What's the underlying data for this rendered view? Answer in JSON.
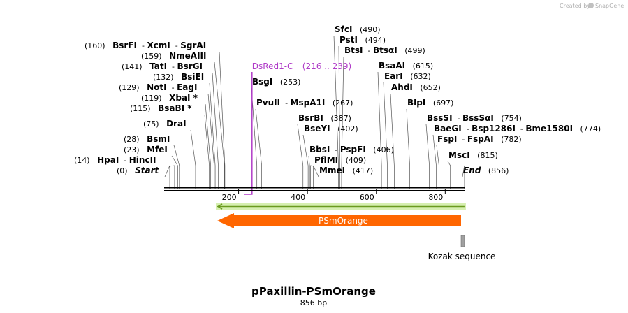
{
  "credit": {
    "text": "Created by",
    "brand": "SnapGene"
  },
  "title": "pPaxillin-PSmOrange",
  "subtitle": "856 bp",
  "sequence_length": 856,
  "ruler": {
    "ticks": [
      "200",
      "400",
      "600",
      "800"
    ]
  },
  "enzymes": [
    {
      "pos": "(160)",
      "names": [
        "BsrFI",
        "XcmI",
        "SgrAI"
      ],
      "bp": 160,
      "order": "pos-first"
    },
    {
      "pos": "(159)",
      "names": [
        "NmeAIII"
      ],
      "bp": 159,
      "order": "pos-first"
    },
    {
      "pos": "(141)",
      "names": [
        "TatI",
        "BsrGI"
      ],
      "bp": 141,
      "order": "pos-first"
    },
    {
      "pos": "(132)",
      "names": [
        "BsiEI"
      ],
      "bp": 132,
      "order": "pos-first"
    },
    {
      "pos": "(129)",
      "names": [
        "NotI",
        "EagI"
      ],
      "bp": 129,
      "order": "pos-first"
    },
    {
      "pos": "(119)",
      "names": [
        "XbaI *"
      ],
      "bp": 119,
      "order": "pos-first"
    },
    {
      "pos": "(115)",
      "names": [
        "BsaBI *"
      ],
      "bp": 115,
      "order": "pos-first"
    },
    {
      "pos": "(75)",
      "names": [
        "DraI"
      ],
      "bp": 75,
      "order": "pos-first"
    },
    {
      "pos": "(28)",
      "names": [
        "BsmI"
      ],
      "bp": 28,
      "order": "pos-first"
    },
    {
      "pos": "(23)",
      "names": [
        "MfeI"
      ],
      "bp": 23,
      "order": "pos-first"
    },
    {
      "pos": "(14)",
      "names": [
        "HpaI",
        "HincII"
      ],
      "bp": 14,
      "order": "pos-first"
    },
    {
      "pos": "(0)",
      "names": [
        "Start"
      ],
      "bp": 0,
      "order": "pos-first",
      "italic": true
    },
    {
      "pos": "(253)",
      "names": [
        "BsgI"
      ],
      "bp": 253,
      "order": "name-first"
    },
    {
      "pos": "(267)",
      "names": [
        "PvuII",
        "MspA1I"
      ],
      "bp": 267,
      "order": "name-first"
    },
    {
      "pos": "(387)",
      "names": [
        "BsrBI"
      ],
      "bp": 387,
      "order": "name-first"
    },
    {
      "pos": "(402)",
      "names": [
        "BseYI"
      ],
      "bp": 402,
      "order": "name-first"
    },
    {
      "pos": "(406)",
      "names": [
        "BbsI",
        "PspFI"
      ],
      "bp": 406,
      "order": "name-first"
    },
    {
      "pos": "(409)",
      "names": [
        "PflMI"
      ],
      "bp": 409,
      "order": "name-first"
    },
    {
      "pos": "(417)",
      "names": [
        "MmeI"
      ],
      "bp": 417,
      "order": "name-first"
    },
    {
      "pos": "(490)",
      "names": [
        "SfcI"
      ],
      "bp": 490,
      "order": "name-first"
    },
    {
      "pos": "(494)",
      "names": [
        "PstI"
      ],
      "bp": 494,
      "order": "name-first"
    },
    {
      "pos": "(499)",
      "names": [
        "BtsI",
        "BtsαI"
      ],
      "bp": 499,
      "order": "name-first"
    },
    {
      "pos": "(615)",
      "names": [
        "BsaAI"
      ],
      "bp": 615,
      "order": "name-first"
    },
    {
      "pos": "(632)",
      "names": [
        "EarI"
      ],
      "bp": 632,
      "order": "name-first"
    },
    {
      "pos": "(652)",
      "names": [
        "AhdI"
      ],
      "bp": 652,
      "order": "name-first"
    },
    {
      "pos": "(697)",
      "names": [
        "BlpI"
      ],
      "bp": 697,
      "order": "name-first"
    },
    {
      "pos": "(754)",
      "names": [
        "BssSI",
        "BssSαI"
      ],
      "bp": 754,
      "order": "name-first"
    },
    {
      "pos": "(774)",
      "names": [
        "BaeGI",
        "Bsp1286I",
        "Bme1580I"
      ],
      "bp": 774,
      "order": "name-first"
    },
    {
      "pos": "(782)",
      "names": [
        "FspI",
        "FspAI"
      ],
      "bp": 782,
      "order": "name-first"
    },
    {
      "pos": "(815)",
      "names": [
        "MscI"
      ],
      "bp": 815,
      "order": "name-first"
    },
    {
      "pos": "(856)",
      "names": [
        "End"
      ],
      "bp": 856,
      "order": "name-first",
      "italic": true
    }
  ],
  "primer": {
    "label": "DsRed1-C",
    "range": "(216 .. 239)",
    "start_bp": 216,
    "end_bp": 239,
    "color": "#b03cc8"
  },
  "orf": {
    "start_bp": 138,
    "end_bp": 856,
    "direction": "reverse",
    "color": "#6a9a1f"
  },
  "feature": {
    "label": "PSmOrange",
    "start_bp": 138,
    "end_bp": 846,
    "direction": "reverse",
    "color": "#ff6600"
  },
  "kozak": {
    "label": "Kozak sequence",
    "start_bp": 846,
    "end_bp": 856,
    "color": "#a0a0a0"
  }
}
